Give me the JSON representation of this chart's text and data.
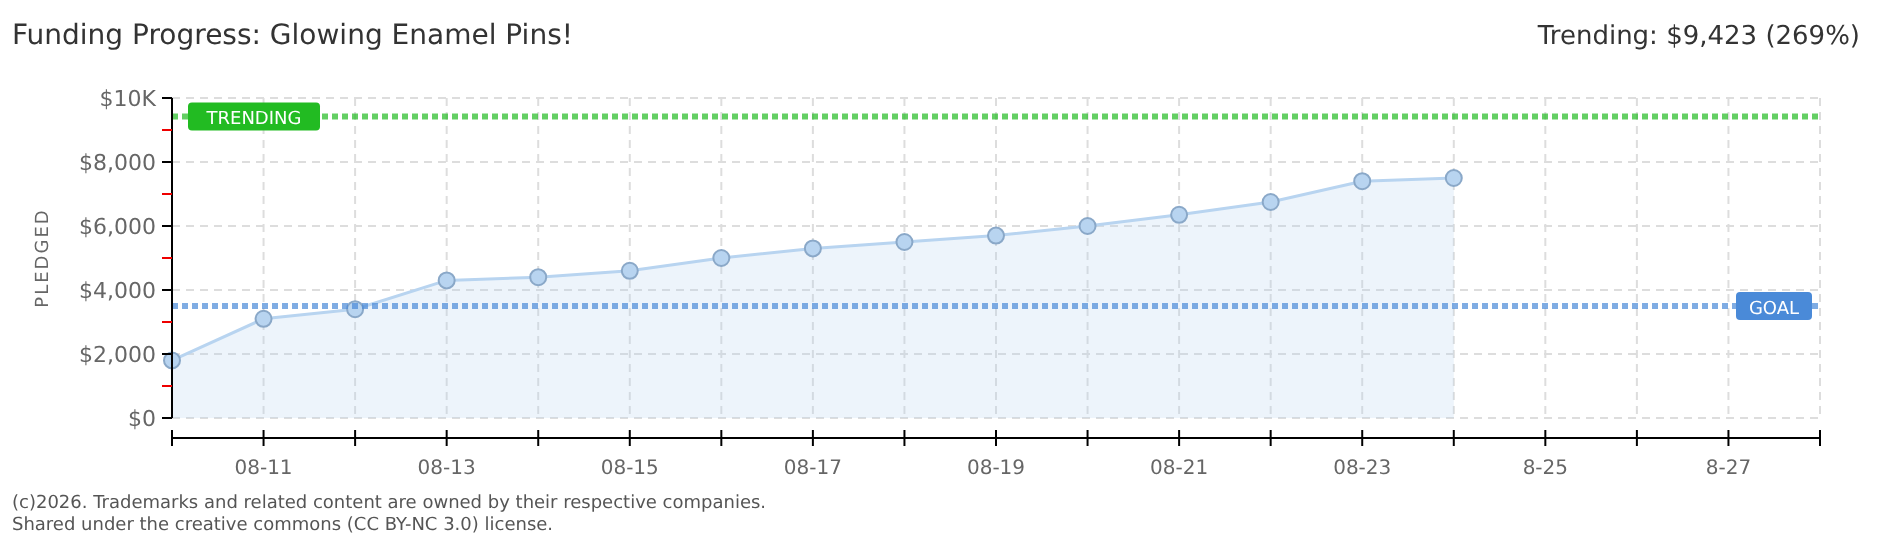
{
  "chart_data": {
    "type": "area",
    "title": "Funding Progress: Glowing Enamel Pins!",
    "subtitle": "Trending: $9,423 (269%)",
    "ylabel": "PLEDGED",
    "x": [
      "--08-10",
      "--08-11",
      "--08-12",
      "--08-13",
      "--08-14",
      "--08-15",
      "--08-16",
      "--08-17",
      "--08-18",
      "--08-19",
      "--08-20",
      "--08-21",
      "--08-22",
      "--08-23",
      "--08-24"
    ],
    "series": [
      {
        "color": "#b8d4f0",
        "values": [
          1800,
          3100,
          3400,
          4300,
          4400,
          4600,
          5000,
          5300,
          5500,
          5700,
          6000,
          6350,
          6750,
          7400,
          7500
        ]
      }
    ],
    "xlim": [
      "--08-10",
      "--08-28"
    ],
    "xticks": [
      {
        "value": "--08-10",
        "label": null
      },
      {
        "value": "--08-11",
        "label": "08-11"
      },
      {
        "value": "--08-12",
        "label": null
      },
      {
        "value": "--08-13",
        "label": "08-13"
      },
      {
        "value": "--08-14",
        "label": null
      },
      {
        "value": "--08-15",
        "label": "08-15"
      },
      {
        "value": "--08-16",
        "label": null
      },
      {
        "value": "--08-17",
        "label": "08-17"
      },
      {
        "value": "--08-18",
        "label": null
      },
      {
        "value": "--08-19",
        "label": "08-19"
      },
      {
        "value": "--08-20",
        "label": null
      },
      {
        "value": "--08-21",
        "label": "08-21"
      },
      {
        "value": "--08-22",
        "label": null
      },
      {
        "value": "--08-23",
        "label": "08-23"
      },
      {
        "value": "--08-24",
        "label": null
      },
      {
        "value": "--08-25",
        "label": "8-25"
      },
      {
        "value": "--08-26",
        "label": null
      },
      {
        "value": "--08-27",
        "label": "8-27"
      },
      {
        "value": "--08-28",
        "label": null
      }
    ],
    "ylim": [
      0,
      10000
    ],
    "yticks": [
      {
        "value": 0,
        "label": "$0"
      },
      {
        "value": 1000,
        "label": null
      },
      {
        "value": 2000,
        "label": "$2,000"
      },
      {
        "value": 3000,
        "label": null
      },
      {
        "value": 4000,
        "label": "$4,000"
      },
      {
        "value": 5000,
        "label": null
      },
      {
        "value": 6000,
        "label": "$6,000"
      },
      {
        "value": 7000,
        "label": null
      },
      {
        "value": 8000,
        "label": "$8,000"
      },
      {
        "value": 9000,
        "label": null
      },
      {
        "value": 10000,
        "label": "$10K"
      }
    ],
    "ref_lines": [
      {
        "axis": "y",
        "value": 9423,
        "label": "TRENDING",
        "color": "#22bb22",
        "line_style": "dotted"
      },
      {
        "axis": "y",
        "value": 3500,
        "label": "GOAL",
        "color": "#4a8ad8",
        "line_style": "dotted"
      }
    ],
    "grid": true,
    "marker": "circle",
    "annotations": [
      "(c)2026. Trademarks and related content are owned by their respective companies.",
      "Shared under the creative commons (CC BY-NC 3.0) license."
    ]
  }
}
